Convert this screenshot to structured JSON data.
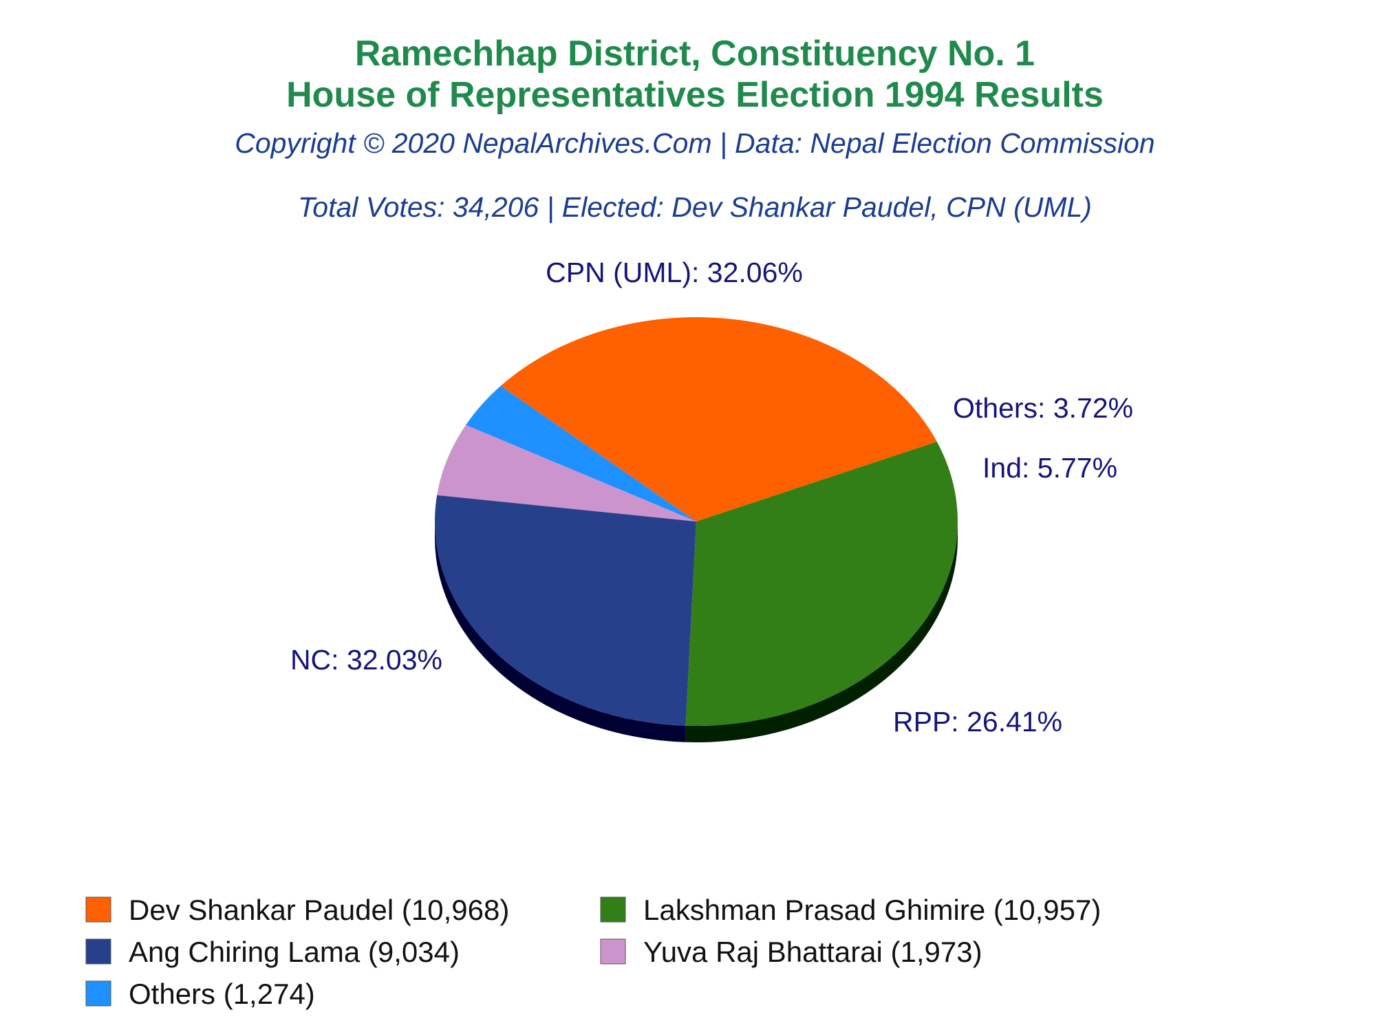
{
  "header": {
    "title_line1": "Ramechhap District, Constituency No. 1",
    "title_line2": "House of Representatives Election 1994 Results",
    "copyright": "Copyright © 2020 NepalArchives.Com | Data: Nepal Election Commission",
    "summary": "Total Votes: 34,206 | Elected: Dev Shankar Paudel, CPN (UML)"
  },
  "colors": {
    "title": "#1f8a4c",
    "subtitle": "#1a3d8f",
    "slice_label": "#14147a"
  },
  "chart_data": {
    "type": "pie",
    "title": "Ramechhap District, Constituency No. 1 House of Representatives Election 1994 Results",
    "total_votes": 34206,
    "slices": [
      {
        "party": "CPN (UML)",
        "label": "CPN (UML): 32.06%",
        "candidate": "Dev Shankar Paudel",
        "votes": 10968,
        "percent": 32.06,
        "color": "#ff6000",
        "side_color": "#7a2e00"
      },
      {
        "party": "Others",
        "label": "Others: 3.72%",
        "candidate": "Others",
        "votes": 1274,
        "percent": 3.72,
        "color": "#1e90ff",
        "side_color": "#0b3f73"
      },
      {
        "party": "Ind",
        "label": "Ind: 5.77%",
        "candidate": "Yuva Raj Bhattarai",
        "votes": 1973,
        "percent": 5.77,
        "color": "#cc94cc",
        "side_color": "#5e3f5e"
      },
      {
        "party": "RPP",
        "label": "RPP: 26.41%",
        "candidate": "Ang Chiring Lama",
        "votes": 9034,
        "percent": 26.41,
        "color": "#26408b",
        "side_color": "#000033"
      },
      {
        "party": "NC",
        "label": "NC: 32.03%",
        "candidate": "Lakshman Prasad Ghimire",
        "votes": 10957,
        "percent": 32.03,
        "color": "#337f17",
        "side_color": "#002000"
      }
    ],
    "legend": [
      {
        "text": "Dev Shankar Paudel (10,968)",
        "color": "#ff6000"
      },
      {
        "text": "Lakshman Prasad Ghimire (10,957)",
        "color": "#337f17"
      },
      {
        "text": "Ang Chiring Lama (9,034)",
        "color": "#26408b"
      },
      {
        "text": "Yuva Raj Bhattarai (1,973)",
        "color": "#cc94cc"
      },
      {
        "text": "Others (1,274)",
        "color": "#1e90ff"
      }
    ],
    "legend_placement": "bottom"
  }
}
